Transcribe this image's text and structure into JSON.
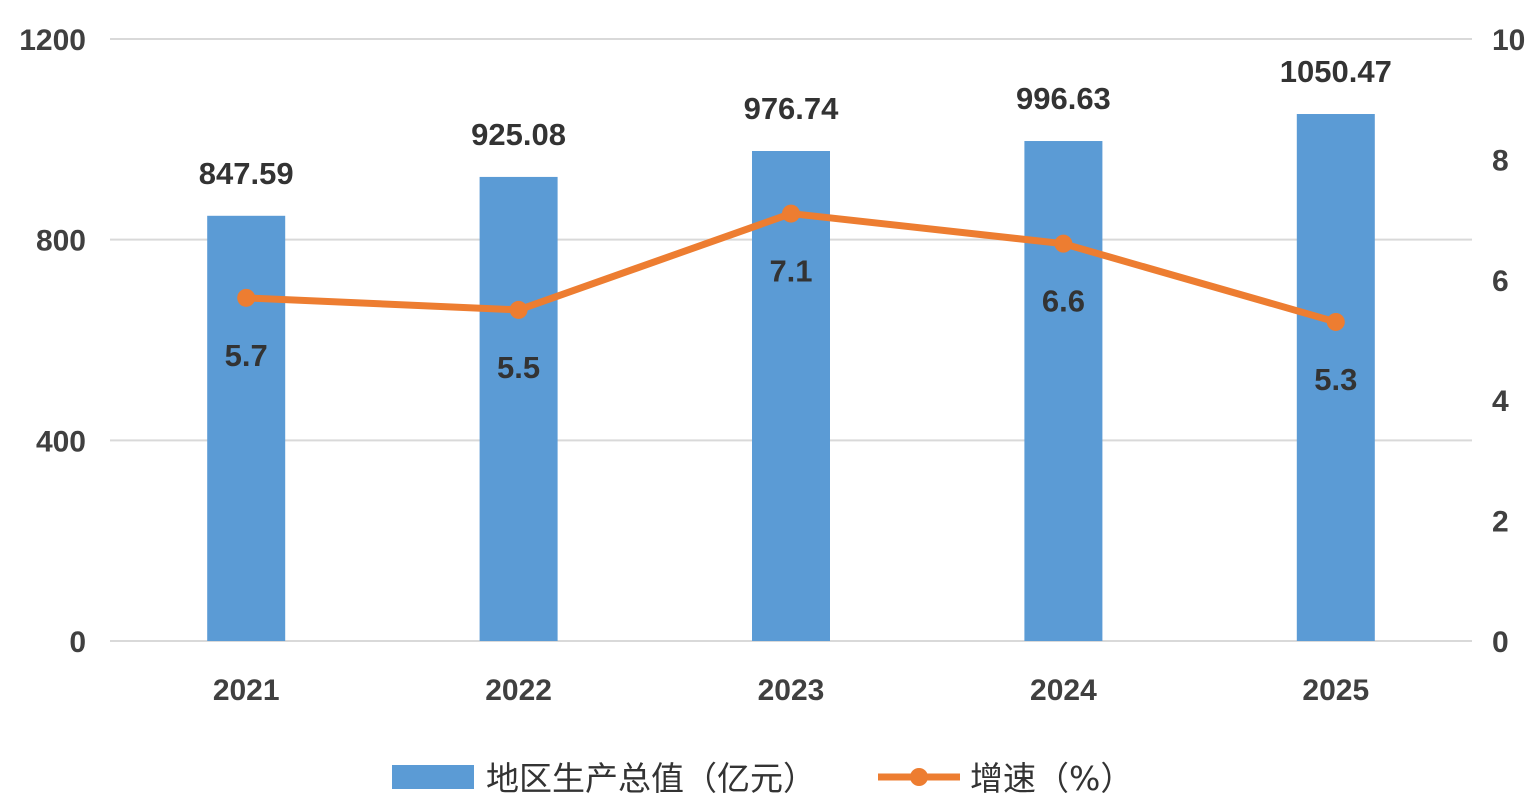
{
  "chart_data": {
    "type": "bar",
    "categories": [
      "2021",
      "2022",
      "2023",
      "2024",
      "2025"
    ],
    "series": [
      {
        "name": "地区生产总值（亿元）",
        "type": "bar",
        "axis": "left",
        "values": [
          847.59,
          925.08,
          976.74,
          996.63,
          1050.47
        ],
        "labels": [
          "847.59",
          "925.08",
          "976.74",
          "996.63",
          "1050.47"
        ],
        "color": "#5B9BD5"
      },
      {
        "name": "增速（%）",
        "type": "line",
        "axis": "right",
        "values": [
          5.7,
          5.5,
          7.1,
          6.6,
          5.3
        ],
        "labels": [
          "5.7",
          "5.5",
          "7.1",
          "6.6",
          "5.3"
        ],
        "color": "#ED7D31"
      }
    ],
    "y_left": {
      "min": 0,
      "max": 1200,
      "ticks": [
        "0",
        "400",
        "800",
        "1200"
      ]
    },
    "y_right": {
      "min": 0,
      "max": 10,
      "ticks": [
        "0",
        "2",
        "4",
        "6",
        "8",
        "10"
      ]
    },
    "grid": true,
    "gridline_color": "#D9D9D9",
    "legend_position": "bottom"
  }
}
